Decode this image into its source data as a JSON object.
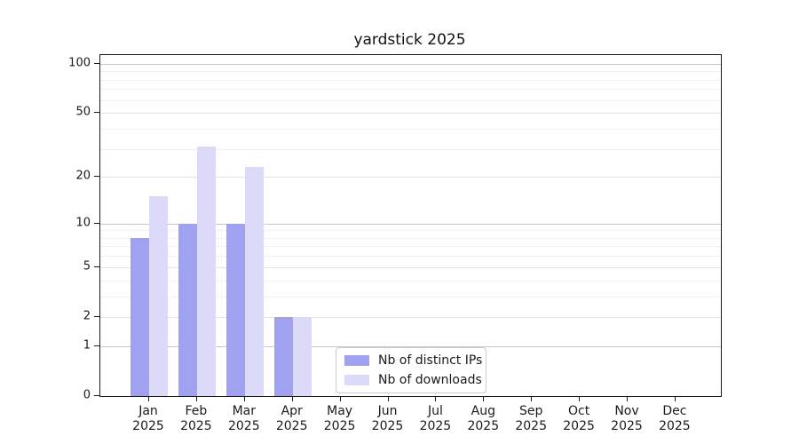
{
  "figure": {
    "background": "#ffffff"
  },
  "chart_data": {
    "type": "bar",
    "title": "yardstick 2025",
    "xlabel": "",
    "ylabel": "",
    "year_label": "2025",
    "categories": [
      "Jan",
      "Feb",
      "Mar",
      "Apr",
      "May",
      "Jun",
      "Jul",
      "Aug",
      "Sep",
      "Oct",
      "Nov",
      "Dec"
    ],
    "series": [
      {
        "name": "Nb of distinct IPs",
        "color": "#a1a1f1",
        "values": [
          8,
          10,
          10,
          2,
          0,
          0,
          0,
          0,
          0,
          0,
          0,
          0
        ]
      },
      {
        "name": "Nb of downloads",
        "color": "#dbdbf9",
        "values": [
          15,
          31,
          23,
          2,
          0,
          0,
          0,
          0,
          0,
          0,
          0,
          0
        ]
      }
    ],
    "yscale": "log1p",
    "ylim": [
      0,
      113
    ],
    "yticks": [
      0,
      1,
      2,
      5,
      10,
      20,
      50,
      100
    ],
    "yticks_power10": [
      1,
      10,
      100
    ],
    "yticks_minor": [
      3,
      4,
      6,
      7,
      8,
      9,
      30,
      40,
      60,
      70,
      80,
      90
    ],
    "grid": "horizontal",
    "legend_position": "inside lower-center-left"
  }
}
